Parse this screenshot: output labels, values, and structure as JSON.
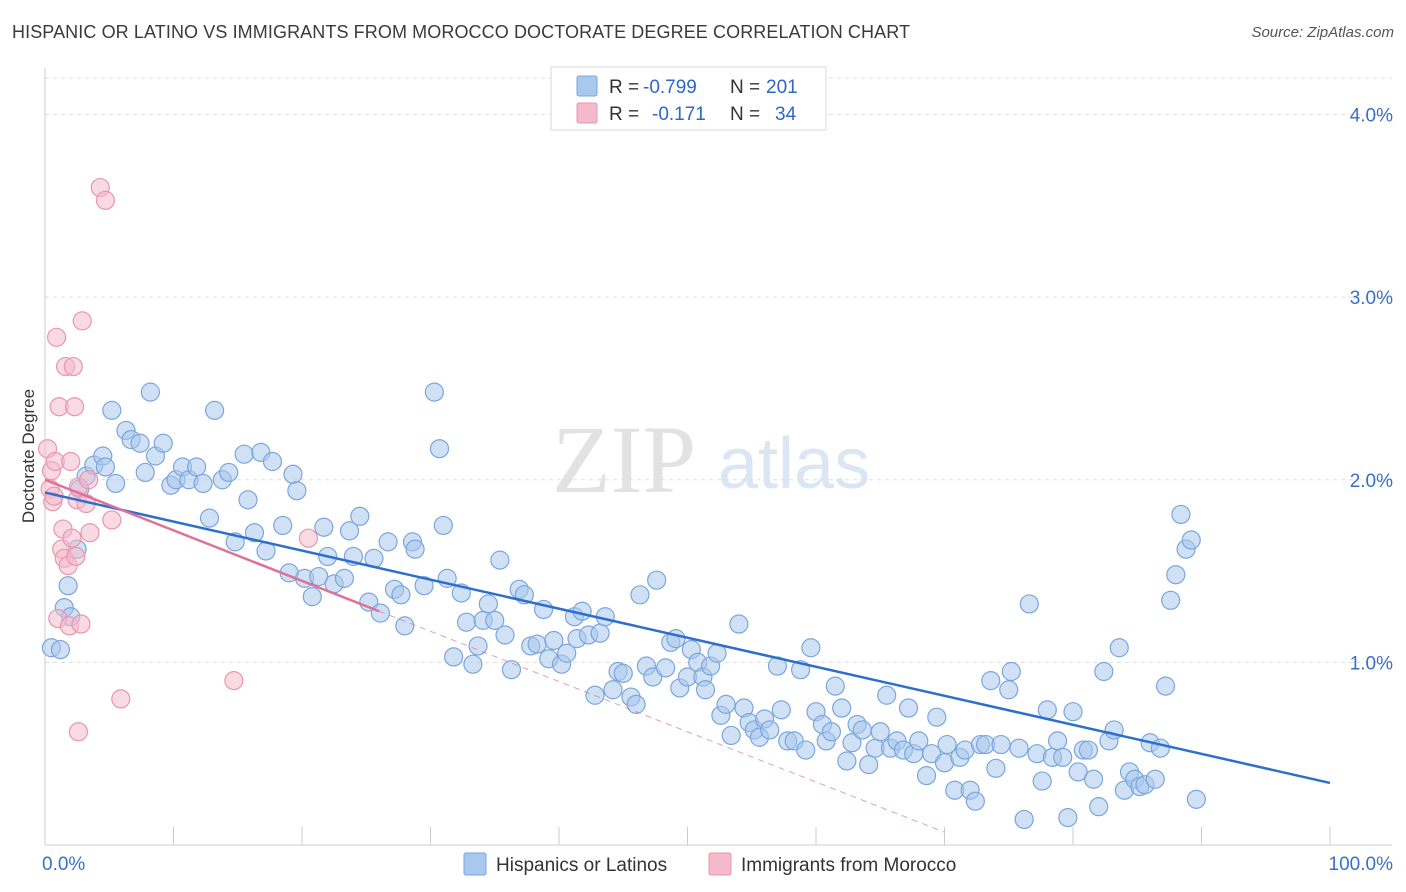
{
  "title": "HISPANIC OR LATINO VS IMMIGRANTS FROM MOROCCO DOCTORATE DEGREE CORRELATION CHART",
  "source": "Source: ZipAtlas.com",
  "watermark": {
    "zip": "ZIP",
    "atlas": "atlas"
  },
  "colors": {
    "blue_fill": "#a9c8ef",
    "blue_stroke": "#7aa6dc",
    "blue_line": "#2f6fcc",
    "pink_fill": "#f4b9cb",
    "pink_stroke": "#e896b0",
    "pink_line": "#e0709a",
    "tick_label": "#3a6fc6",
    "grid": "#dddddd"
  },
  "legend": {
    "r_label": "R =",
    "n_label": "N =",
    "series1": {
      "r": "-0.799",
      "n": "201"
    },
    "series2": {
      "r": "-0.171",
      "n": "34"
    }
  },
  "chart_data": {
    "type": "scatter",
    "title": "HISPANIC OR LATINO VS IMMIGRANTS FROM MOROCCO DOCTORATE DEGREE CORRELATION CHART",
    "xlabel": "",
    "ylabel": "Doctorate Degree",
    "xlim": [
      0,
      100
    ],
    "ylim": [
      0,
      4.2
    ],
    "x_tick_labels": [
      "0.0%",
      "100.0%"
    ],
    "y_ticks": [
      1.0,
      2.0,
      3.0,
      4.0
    ],
    "y_tick_labels": [
      "1.0%",
      "2.0%",
      "3.0%",
      "4.0%"
    ],
    "grid": true,
    "legend_position": "top-center",
    "series": [
      {
        "name": "Hispanics or Latinos",
        "r": -0.799,
        "n": 201,
        "trend": {
          "x": [
            0,
            100
          ],
          "y": [
            1.93,
            0.34
          ]
        },
        "points": [
          [
            0.5,
            1.08
          ],
          [
            1.2,
            1.07
          ],
          [
            1.5,
            1.3
          ],
          [
            1.8,
            1.42
          ],
          [
            2.0,
            1.25
          ],
          [
            2.5,
            1.62
          ],
          [
            2.7,
            1.95
          ],
          [
            3.2,
            2.02
          ],
          [
            3.8,
            2.08
          ],
          [
            4.5,
            2.13
          ],
          [
            4.7,
            2.07
          ],
          [
            5.2,
            2.38
          ],
          [
            5.5,
            1.98
          ],
          [
            6.3,
            2.27
          ],
          [
            6.7,
            2.22
          ],
          [
            7.4,
            2.2
          ],
          [
            7.8,
            2.04
          ],
          [
            8.2,
            2.48
          ],
          [
            8.6,
            2.13
          ],
          [
            9.2,
            2.2
          ],
          [
            9.8,
            1.97
          ],
          [
            10.2,
            2.0
          ],
          [
            10.7,
            2.07
          ],
          [
            11.2,
            2.0
          ],
          [
            11.8,
            2.07
          ],
          [
            12.3,
            1.98
          ],
          [
            12.8,
            1.79
          ],
          [
            13.2,
            2.38
          ],
          [
            13.8,
            2.0
          ],
          [
            14.3,
            2.04
          ],
          [
            14.8,
            1.66
          ],
          [
            15.5,
            2.14
          ],
          [
            15.8,
            1.89
          ],
          [
            16.3,
            1.71
          ],
          [
            16.8,
            2.15
          ],
          [
            17.2,
            1.61
          ],
          [
            17.7,
            2.1
          ],
          [
            18.5,
            1.75
          ],
          [
            19.0,
            1.49
          ],
          [
            19.3,
            2.03
          ],
          [
            19.6,
            1.94
          ],
          [
            20.2,
            1.46
          ],
          [
            20.8,
            1.36
          ],
          [
            21.3,
            1.47
          ],
          [
            21.7,
            1.74
          ],
          [
            22.0,
            1.58
          ],
          [
            22.5,
            1.43
          ],
          [
            23.3,
            1.46
          ],
          [
            23.7,
            1.72
          ],
          [
            24.0,
            1.58
          ],
          [
            24.5,
            1.8
          ],
          [
            25.2,
            1.33
          ],
          [
            25.6,
            1.57
          ],
          [
            26.1,
            1.27
          ],
          [
            26.7,
            1.66
          ],
          [
            27.2,
            1.4
          ],
          [
            27.7,
            1.37
          ],
          [
            28.0,
            1.2
          ],
          [
            28.6,
            1.66
          ],
          [
            28.8,
            1.62
          ],
          [
            29.5,
            1.42
          ],
          [
            30.3,
            2.48
          ],
          [
            30.7,
            2.17
          ],
          [
            31.0,
            1.75
          ],
          [
            31.3,
            1.46
          ],
          [
            31.8,
            1.03
          ],
          [
            32.4,
            1.38
          ],
          [
            32.8,
            1.22
          ],
          [
            33.3,
            0.99
          ],
          [
            33.7,
            1.09
          ],
          [
            34.1,
            1.23
          ],
          [
            34.5,
            1.32
          ],
          [
            35.0,
            1.23
          ],
          [
            35.4,
            1.56
          ],
          [
            35.8,
            1.15
          ],
          [
            36.3,
            0.96
          ],
          [
            36.9,
            1.4
          ],
          [
            37.3,
            1.37
          ],
          [
            37.8,
            1.09
          ],
          [
            38.3,
            1.1
          ],
          [
            38.8,
            1.29
          ],
          [
            39.2,
            1.02
          ],
          [
            39.6,
            1.12
          ],
          [
            40.2,
            0.99
          ],
          [
            40.6,
            1.05
          ],
          [
            41.2,
            1.25
          ],
          [
            41.4,
            1.13
          ],
          [
            41.8,
            1.28
          ],
          [
            42.3,
            1.15
          ],
          [
            42.8,
            0.82
          ],
          [
            43.2,
            1.16
          ],
          [
            43.6,
            1.25
          ],
          [
            44.2,
            0.85
          ],
          [
            44.6,
            0.95
          ],
          [
            45.0,
            0.94
          ],
          [
            45.6,
            0.81
          ],
          [
            46.0,
            0.77
          ],
          [
            46.3,
            1.37
          ],
          [
            46.8,
            0.98
          ],
          [
            47.3,
            0.92
          ],
          [
            47.6,
            1.45
          ],
          [
            48.3,
            0.97
          ],
          [
            48.7,
            1.11
          ],
          [
            49.1,
            1.13
          ],
          [
            49.4,
            0.86
          ],
          [
            50.0,
            0.92
          ],
          [
            50.3,
            1.07
          ],
          [
            50.8,
            1.0
          ],
          [
            51.2,
            0.92
          ],
          [
            51.4,
            0.85
          ],
          [
            51.8,
            0.98
          ],
          [
            52.3,
            1.05
          ],
          [
            52.6,
            0.71
          ],
          [
            53.0,
            0.77
          ],
          [
            53.4,
            0.6
          ],
          [
            54.0,
            1.21
          ],
          [
            54.4,
            0.75
          ],
          [
            54.8,
            0.67
          ],
          [
            55.2,
            0.63
          ],
          [
            55.6,
            0.59
          ],
          [
            56.0,
            0.69
          ],
          [
            56.4,
            0.63
          ],
          [
            57.0,
            0.98
          ],
          [
            57.3,
            0.74
          ],
          [
            57.8,
            0.57
          ],
          [
            58.3,
            0.57
          ],
          [
            58.8,
            0.96
          ],
          [
            59.2,
            0.52
          ],
          [
            59.6,
            1.08
          ],
          [
            60.0,
            0.73
          ],
          [
            60.5,
            0.66
          ],
          [
            60.8,
            0.57
          ],
          [
            61.2,
            0.62
          ],
          [
            61.5,
            0.87
          ],
          [
            62.0,
            0.75
          ],
          [
            62.4,
            0.46
          ],
          [
            62.8,
            0.56
          ],
          [
            63.2,
            0.66
          ],
          [
            63.6,
            0.63
          ],
          [
            64.1,
            0.44
          ],
          [
            64.6,
            0.53
          ],
          [
            65.0,
            0.62
          ],
          [
            65.5,
            0.82
          ],
          [
            65.8,
            0.53
          ],
          [
            66.3,
            0.57
          ],
          [
            66.8,
            0.52
          ],
          [
            67.2,
            0.75
          ],
          [
            67.6,
            0.5
          ],
          [
            68.0,
            0.57
          ],
          [
            68.6,
            0.38
          ],
          [
            69.0,
            0.5
          ],
          [
            69.4,
            0.7
          ],
          [
            70.0,
            0.45
          ],
          [
            70.2,
            0.55
          ],
          [
            70.8,
            0.3
          ],
          [
            71.2,
            0.48
          ],
          [
            71.6,
            0.52
          ],
          [
            72.0,
            0.3
          ],
          [
            72.4,
            0.24
          ],
          [
            72.8,
            0.55
          ],
          [
            73.2,
            0.55
          ],
          [
            73.6,
            0.9
          ],
          [
            74.0,
            0.42
          ],
          [
            74.4,
            0.55
          ],
          [
            75.0,
            0.85
          ],
          [
            75.2,
            0.95
          ],
          [
            75.8,
            0.53
          ],
          [
            76.2,
            0.14
          ],
          [
            76.6,
            1.32
          ],
          [
            77.2,
            0.5
          ],
          [
            77.6,
            0.35
          ],
          [
            78.0,
            0.74
          ],
          [
            78.4,
            0.48
          ],
          [
            78.8,
            0.57
          ],
          [
            79.2,
            0.48
          ],
          [
            79.6,
            0.15
          ],
          [
            80.0,
            0.73
          ],
          [
            80.4,
            0.4
          ],
          [
            80.8,
            0.52
          ],
          [
            81.2,
            0.52
          ],
          [
            81.6,
            0.36
          ],
          [
            82.0,
            0.21
          ],
          [
            82.4,
            0.95
          ],
          [
            82.8,
            0.57
          ],
          [
            83.2,
            0.63
          ],
          [
            83.6,
            1.08
          ],
          [
            84.0,
            0.3
          ],
          [
            84.4,
            0.4
          ],
          [
            84.8,
            0.36
          ],
          [
            85.2,
            0.32
          ],
          [
            85.6,
            0.33
          ],
          [
            86.0,
            0.56
          ],
          [
            86.4,
            0.36
          ],
          [
            86.8,
            0.53
          ],
          [
            87.2,
            0.87
          ],
          [
            87.6,
            1.34
          ],
          [
            88.0,
            1.48
          ],
          [
            88.4,
            1.81
          ],
          [
            88.8,
            1.62
          ],
          [
            89.2,
            1.67
          ],
          [
            89.6,
            0.25
          ]
        ]
      },
      {
        "name": "Immigrants from Morocco",
        "r": -0.171,
        "n": 34,
        "trend": {
          "x": [
            0,
            26
          ],
          "y": [
            2.0,
            1.28
          ]
        },
        "trend_extended": {
          "x": [
            26,
            70
          ],
          "y": [
            1.28,
            0.07
          ]
        },
        "points": [
          [
            0.2,
            2.17
          ],
          [
            0.4,
            1.95
          ],
          [
            0.5,
            2.05
          ],
          [
            0.6,
            1.88
          ],
          [
            0.7,
            1.91
          ],
          [
            0.8,
            2.1
          ],
          [
            0.9,
            2.78
          ],
          [
            1.0,
            1.24
          ],
          [
            1.1,
            2.4
          ],
          [
            1.3,
            1.62
          ],
          [
            1.4,
            1.73
          ],
          [
            1.5,
            1.57
          ],
          [
            1.6,
            2.62
          ],
          [
            1.8,
            1.53
          ],
          [
            1.9,
            1.2
          ],
          [
            2.0,
            2.1
          ],
          [
            2.1,
            1.68
          ],
          [
            2.2,
            2.62
          ],
          [
            2.3,
            2.4
          ],
          [
            2.4,
            1.58
          ],
          [
            2.5,
            1.89
          ],
          [
            2.6,
            1.96
          ],
          [
            2.8,
            1.21
          ],
          [
            2.9,
            2.87
          ],
          [
            2.6,
            0.62
          ],
          [
            3.2,
            1.87
          ],
          [
            3.4,
            2.0
          ],
          [
            3.5,
            1.71
          ],
          [
            4.3,
            3.6
          ],
          [
            4.7,
            3.53
          ],
          [
            5.2,
            1.78
          ],
          [
            5.9,
            0.8
          ],
          [
            14.7,
            0.9
          ],
          [
            20.5,
            1.68
          ]
        ]
      }
    ]
  },
  "bottom_legend": {
    "series1": "Hispanics or Latinos",
    "series2": "Immigrants from Morocco"
  }
}
